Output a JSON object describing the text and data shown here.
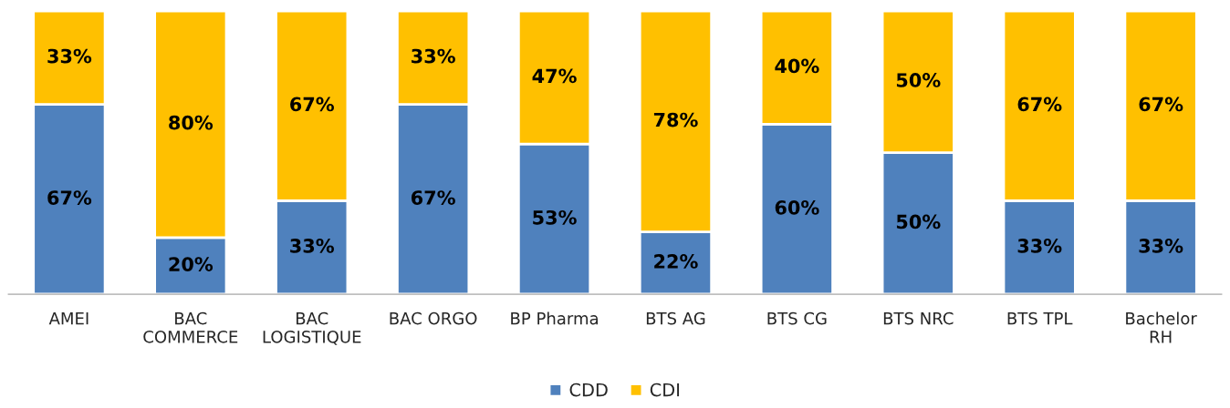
{
  "chart_data": {
    "type": "bar",
    "stacked": true,
    "legend": "bottom",
    "categories": [
      "AMEI",
      "BAC\nCOMMERCE",
      "BAC\nLOGISTIQUE",
      "BAC ORGO",
      "BP Pharma",
      "BTS AG",
      "BTS CG",
      "BTS NRC",
      "BTS TPL",
      "Bachelor\nRH"
    ],
    "series": [
      {
        "name": "CDD",
        "color": "#4f81bd",
        "values": [
          67,
          20,
          33,
          67,
          53,
          22,
          60,
          50,
          33,
          33
        ],
        "value_labels": [
          "67%",
          "20%",
          "33%",
          "67%",
          "53%",
          "22%",
          "60%",
          "50%",
          "33%",
          "33%"
        ]
      },
      {
        "name": "CDI",
        "color": "#ffc000",
        "values": [
          33,
          80,
          67,
          33,
          47,
          78,
          40,
          50,
          67,
          67
        ],
        "value_labels": [
          "33%",
          "80%",
          "67%",
          "33%",
          "47%",
          "78%",
          "40%",
          "50%",
          "67%",
          "67%"
        ]
      }
    ]
  }
}
